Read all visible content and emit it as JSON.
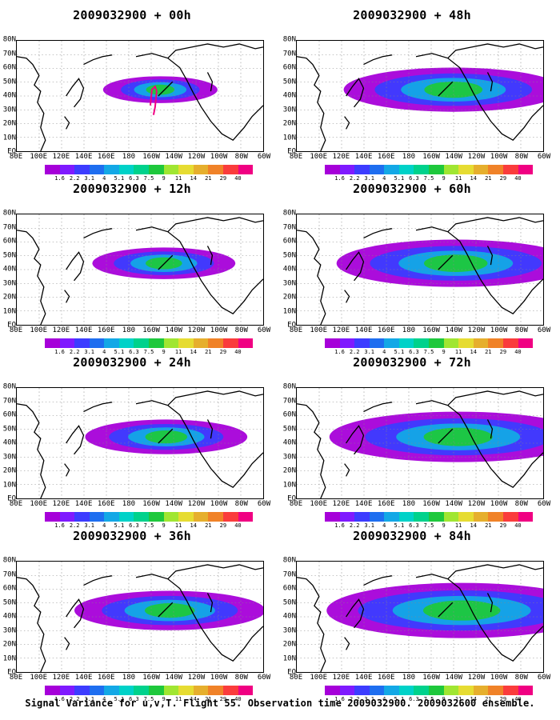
{
  "panels": [
    {
      "title": "2009032900 + 00h"
    },
    {
      "title": "2009032900 + 48h"
    },
    {
      "title": "2009032900 + 12h"
    },
    {
      "title": "2009032900 + 60h"
    },
    {
      "title": "2009032900 + 24h"
    },
    {
      "title": "2009032900 + 72h"
    },
    {
      "title": "2009032900 + 36h"
    },
    {
      "title": "2009032900 + 84h"
    }
  ],
  "lat_labels": [
    "80N",
    "70N",
    "60N",
    "50N",
    "40N",
    "30N",
    "20N",
    "10N",
    "EQ"
  ],
  "lon_labels": [
    "80E",
    "100E",
    "120E",
    "140E",
    "160E",
    "180",
    "160W",
    "140W",
    "120W",
    "100W",
    "80W",
    "60W"
  ],
  "colorbar": {
    "labels": [
      "1.6",
      "2.2",
      "3.1",
      "4",
      "5.1",
      "6.3",
      "7.5",
      "9",
      "11",
      "14",
      "21",
      "29",
      "40"
    ],
    "colors": [
      "#a600d9",
      "#7f1aff",
      "#3c3cff",
      "#1e6ef0",
      "#13a8e6",
      "#00d2c8",
      "#00d28c",
      "#1ec83c",
      "#a0e632",
      "#e6dc32",
      "#e6af2d",
      "#f08228",
      "#fa3c3c",
      "#f00082"
    ]
  },
  "footer": "Signal Variance for u,v,T. Flight 55. Observation time 2009032900. 2009032600 ensemble."
}
